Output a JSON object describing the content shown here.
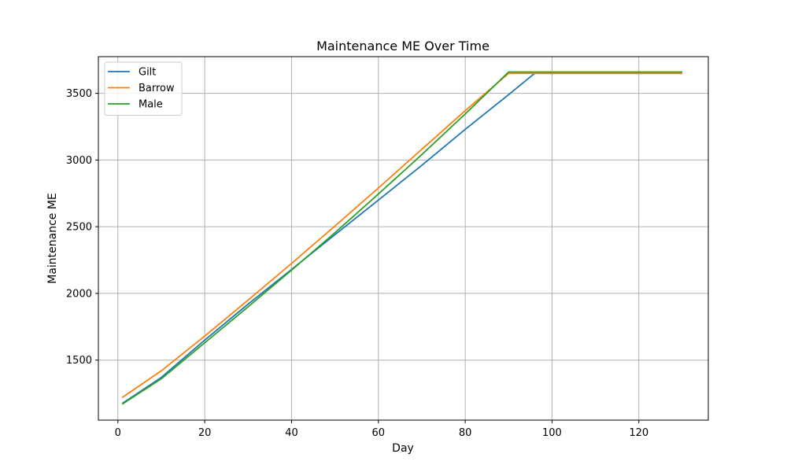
{
  "chart_data": {
    "type": "line",
    "title": "Maintenance ME Over Time",
    "xlabel": "Day",
    "ylabel": "Maintenance ME",
    "xlim": [
      -4.5,
      136
    ],
    "ylim": [
      1050,
      3775
    ],
    "xticks": [
      0,
      20,
      40,
      60,
      80,
      100,
      120
    ],
    "yticks": [
      1500,
      2000,
      2500,
      3000,
      3500
    ],
    "grid": true,
    "legend_position": "top-left",
    "series": [
      {
        "name": "Gilt",
        "color": "#1f77b4",
        "points": [
          [
            1,
            1175
          ],
          [
            10,
            1370
          ],
          [
            20,
            1650
          ],
          [
            30,
            1920
          ],
          [
            40,
            2180
          ],
          [
            50,
            2440
          ],
          [
            60,
            2700
          ],
          [
            70,
            2960
          ],
          [
            80,
            3230
          ],
          [
            90,
            3490
          ],
          [
            96,
            3650
          ],
          [
            130,
            3650
          ]
        ]
      },
      {
        "name": "Barrow",
        "color": "#ff7f0e",
        "points": [
          [
            1,
            1220
          ],
          [
            10,
            1420
          ],
          [
            20,
            1680
          ],
          [
            30,
            1950
          ],
          [
            40,
            2225
          ],
          [
            50,
            2505
          ],
          [
            60,
            2790
          ],
          [
            70,
            3080
          ],
          [
            80,
            3370
          ],
          [
            90,
            3650
          ],
          [
            130,
            3650
          ]
        ]
      },
      {
        "name": "Male",
        "color": "#2ca02c",
        "points": [
          [
            1,
            1170
          ],
          [
            10,
            1360
          ],
          [
            20,
            1630
          ],
          [
            30,
            1900
          ],
          [
            40,
            2175
          ],
          [
            50,
            2455
          ],
          [
            60,
            2745
          ],
          [
            70,
            3040
          ],
          [
            80,
            3345
          ],
          [
            90,
            3660
          ],
          [
            130,
            3660
          ]
        ]
      }
    ]
  }
}
